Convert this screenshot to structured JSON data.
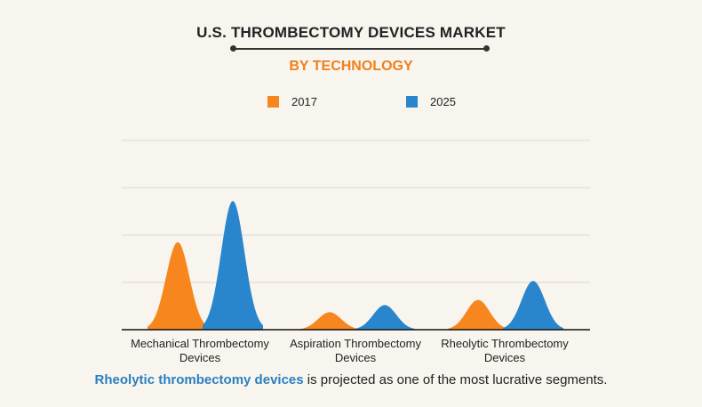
{
  "header": {
    "title": "U.S. THROMBECTOMY DEVICES MARKET",
    "subtitle": "BY TECHNOLOGY"
  },
  "legend": {
    "items": [
      {
        "label": "2017",
        "color": "#f7861e"
      },
      {
        "label": "2025",
        "color": "#2a86cc"
      }
    ]
  },
  "chart_data": {
    "type": "area",
    "categories": [
      {
        "line1": "Mechanical Thrombectomy",
        "line2": "Devices"
      },
      {
        "line1": "Aspiration Thrombectomy",
        "line2": "Devices"
      },
      {
        "line1": "Rheolytic Thrombectomy",
        "line2": "Devices"
      }
    ],
    "series": [
      {
        "name": "2017",
        "color": "#f7861e",
        "values": [
          1.85,
          0.37,
          0.63
        ]
      },
      {
        "name": "2025",
        "color": "#2a86cc",
        "values": [
          2.72,
          0.52,
          1.03
        ]
      }
    ],
    "ylim": [
      0,
      4
    ],
    "grid": true,
    "legend_position": "top-center"
  },
  "footnote": {
    "highlight": "Rheolytic thrombectomy devices",
    "rest": " is projected as one of the most lucrative segments."
  }
}
